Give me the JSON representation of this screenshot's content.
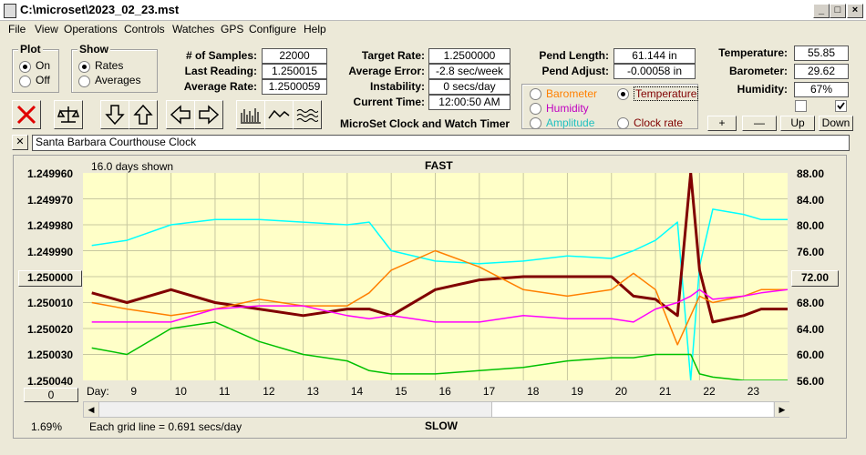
{
  "window": {
    "title": "C:\\microset\\2023_02_23.mst"
  },
  "menu": [
    "File",
    "View",
    "Operations",
    "Controls",
    "Watches",
    "GPS",
    "Configure",
    "Help"
  ],
  "plot_group": {
    "title": "Plot",
    "on": "On",
    "off": "Off",
    "selected": "On"
  },
  "show_group": {
    "title": "Show",
    "rates": "Rates",
    "averages": "Averages",
    "selected": "Rates"
  },
  "stats": {
    "samples_label": "# of Samples:",
    "samples": "22000",
    "last_reading_label": "Last Reading:",
    "last_reading": "1.250015",
    "average_rate_label": "Average Rate:",
    "average_rate": "1.2500059",
    "target_rate_label": "Target Rate:",
    "target_rate": "1.2500000",
    "average_error_label": "Average Error:",
    "average_error": "-2.8 sec/week",
    "instability_label": "Instability:",
    "instability": "0 secs/day",
    "current_time_label": "Current Time:",
    "current_time": "12:00:50 AM",
    "pend_length_label": "Pend Length:",
    "pend_length": "61.144 in",
    "pend_adjust_label": "Pend Adjust:",
    "pend_adjust": "-0.00058 in",
    "temperature_label": "Temperature:",
    "temperature": "55.85",
    "barometer_label": "Barometer:",
    "barometer": "29.62",
    "humidity_label": "Humidity:",
    "humidity": "67%"
  },
  "app_caption": "MicroSet Clock and Watch Timer",
  "series_select": {
    "barometer": "Barometer",
    "temperature": "Temperature",
    "humidity": "Humidity",
    "amplitude": "Amplitude",
    "clock_rate": "Clock rate",
    "selected": "Temperature"
  },
  "scale_buttons": {
    "plus": "+",
    "minus": "—",
    "up": "Up",
    "down": "Down"
  },
  "clock_name": "Santa Barbara Courthouse Clock",
  "close_x": "✕",
  "chart": {
    "days_shown": "16.0 days shown",
    "fast": "FAST",
    "slow": "SLOW",
    "grid_note": "Each grid line = 0.691 secs/day",
    "percent": "1.69%",
    "day_label": "Day:",
    "left_center_btn": "1.250000",
    "right_center_btn": "72.00",
    "left_bottom_btn": "0"
  },
  "colors": {
    "barometer": "#ff8000",
    "temperature": "#800000",
    "humidity": "#ff00ff",
    "amplitude": "#00c000",
    "rate": "#00ffff",
    "plot_bg": "#ffffc8"
  },
  "chart_data": {
    "type": "line",
    "title": "",
    "y_left_ticks": [
      "1.249960",
      "1.249970",
      "1.249980",
      "1.249990",
      "1.250000",
      "1.250010",
      "1.250020",
      "1.250030",
      "1.250040"
    ],
    "y_right_ticks": [
      "88.00",
      "84.00",
      "80.00",
      "76.00",
      "72.00",
      "68.00",
      "64.00",
      "60.00",
      "56.00"
    ],
    "x_ticks": [
      "9",
      "10",
      "11",
      "12",
      "13",
      "14",
      "15",
      "16",
      "17",
      "18",
      "19",
      "20",
      "21",
      "22",
      "23"
    ],
    "x": [
      8.2,
      9,
      10,
      11,
      12,
      13,
      14,
      14.5,
      15,
      16,
      17,
      18,
      19,
      20,
      20.5,
      21,
      21.5,
      21.8,
      22,
      22.3,
      23,
      23.4,
      24
    ],
    "ylim_left": [
      1.24996,
      1.25004
    ],
    "ylim_right": [
      56,
      88
    ],
    "series": [
      {
        "name": "Clock rate",
        "color": "#00ffff",
        "values": [
          1.249988,
          1.249986,
          1.24998,
          1.249978,
          1.249978,
          1.249979,
          1.24998,
          1.249979,
          1.24999,
          1.249994,
          1.249995,
          1.249994,
          1.249992,
          1.249993,
          1.24999,
          1.249986,
          1.249979,
          1.25004,
          1.249996,
          1.249974,
          1.249976,
          1.249978,
          1.249978
        ]
      },
      {
        "name": "Temperature",
        "color": "#800000",
        "values": [
          69.5,
          68,
          70,
          68,
          67,
          66,
          67,
          67,
          66,
          70,
          71.5,
          72,
          72,
          72,
          69,
          68.5,
          66,
          88,
          73,
          65,
          66,
          67,
          67
        ]
      },
      {
        "name": "Barometer",
        "color": "#ff8000",
        "values": [
          68,
          67,
          66,
          67,
          68.5,
          67.5,
          67.5,
          69.5,
          73,
          76,
          73.5,
          70,
          69,
          70,
          72.5,
          70,
          61.5,
          66,
          69,
          68,
          69,
          70,
          70
        ]
      },
      {
        "name": "Humidity",
        "color": "#ff00ff",
        "values": [
          65,
          65,
          65,
          67,
          67.5,
          67.5,
          66,
          65.5,
          66,
          65,
          65,
          66,
          65.5,
          65.5,
          65,
          67,
          68,
          69,
          70,
          68.5,
          69,
          69.5,
          70
        ]
      },
      {
        "name": "Amplitude",
        "color": "#00c000",
        "values": [
          61,
          60,
          64,
          65,
          62,
          60,
          59,
          57.5,
          57,
          57,
          57.5,
          58,
          59,
          59.5,
          59.5,
          60,
          60,
          60,
          57,
          56.5,
          56,
          56,
          56
        ]
      }
    ]
  }
}
